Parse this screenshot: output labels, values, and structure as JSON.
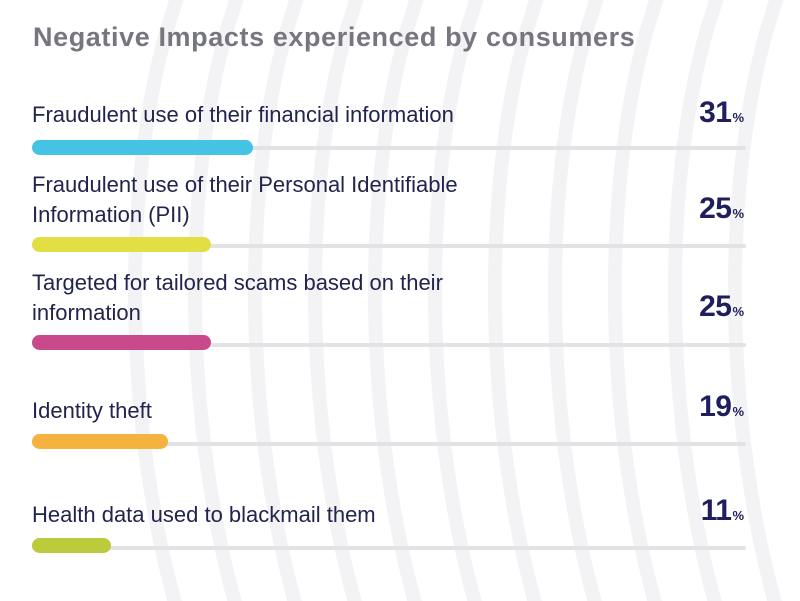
{
  "chart_data": {
    "type": "bar",
    "orientation": "horizontal",
    "title": "Negative Impacts experienced by consumers",
    "categories": [
      "Fraudulent use of their financial information",
      "Fraudulent use of their Personal Identifiable Information (PII)",
      "Targeted for tailored scams based on their information",
      "Identity theft",
      "Health data used to blackmail them"
    ],
    "values": [
      31,
      25,
      25,
      19,
      11
    ],
    "value_unit": "%",
    "xlim": [
      0,
      100
    ],
    "colors": [
      "#44c3e5",
      "#e2df45",
      "#c94a8a",
      "#f5b23f",
      "#bccb3c"
    ],
    "track_color": "#e3e3e6",
    "grid": false,
    "legend": "none"
  }
}
